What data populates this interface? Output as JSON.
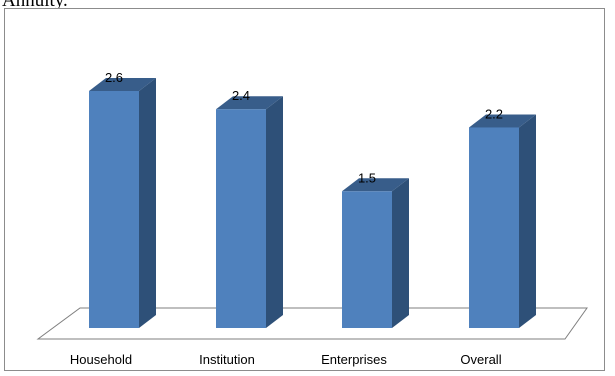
{
  "document": {
    "text_above": "Annuity."
  },
  "chart_data": {
    "type": "bar",
    "title": "",
    "xlabel": "",
    "ylabel": "",
    "categories": [
      "Household",
      "Institution",
      "Enterprises",
      "Overall"
    ],
    "values": [
      2.6,
      2.4,
      1.5,
      2.2
    ],
    "data_labels": [
      "2.6",
      "2.4",
      "1.5",
      "2.2"
    ],
    "ylim": [
      0,
      3
    ],
    "grid": false,
    "legend": "none",
    "style": "3d-column",
    "colors": {
      "bar_front": "#4f81bd",
      "bar_side": "#2e5078",
      "bar_top": "#385d8a",
      "floor_stroke": "#7f7f7f",
      "border": "#8c8c8c"
    }
  }
}
